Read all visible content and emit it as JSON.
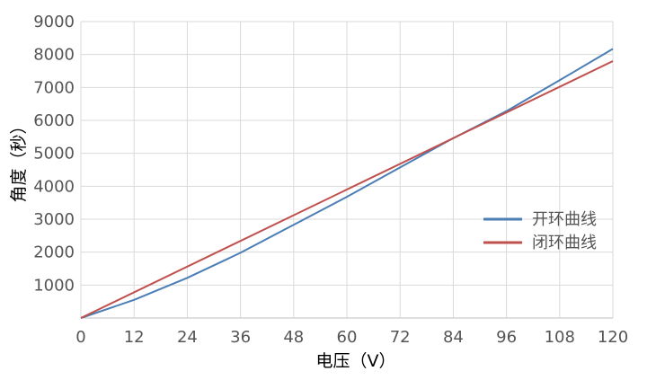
{
  "chart_data": {
    "type": "line",
    "xlabel": "电压（V）",
    "ylabel": "角度（秒）",
    "xlim": [
      0,
      120
    ],
    "ylim": [
      0,
      9000
    ],
    "x_ticks": [
      "0",
      "12",
      "24",
      "36",
      "48",
      "60",
      "72",
      "84",
      "96",
      "108",
      "120"
    ],
    "y_ticks": [
      "1000",
      "2000",
      "3000",
      "4000",
      "5000",
      "6000",
      "7000",
      "8000",
      "9000"
    ],
    "grid": true,
    "legend_position": "right",
    "series": [
      {
        "name": "开环曲线",
        "color": "#4a7eb5",
        "x": [
          0,
          12,
          24,
          36,
          48,
          60,
          72,
          84,
          96,
          108,
          120
        ],
        "y": [
          0,
          550,
          1220,
          1980,
          2830,
          3680,
          4570,
          5460,
          6280,
          7220,
          8170
        ]
      },
      {
        "name": "闭环曲线",
        "color": "#c0504d",
        "x": [
          0,
          120
        ],
        "y": [
          0,
          7800
        ]
      }
    ]
  }
}
